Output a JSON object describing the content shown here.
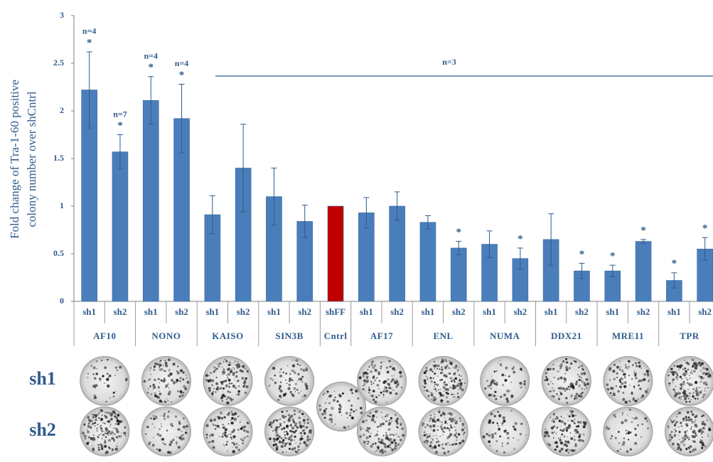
{
  "chart_data": {
    "type": "bar",
    "y_label": [
      "Fold change of Tra-1-60 positive",
      "colony number over shCntrl"
    ],
    "ylim": [
      0,
      3
    ],
    "yticks": [
      0,
      0.5,
      1,
      1.5,
      2,
      2.5,
      3
    ],
    "groups": [
      {
        "label": "AF10",
        "color": "#4a7ebb",
        "categories": [
          "sh1",
          "sh2"
        ],
        "values": [
          2.22,
          1.57
        ],
        "errors": [
          0.4,
          0.18
        ],
        "markers": [
          "*",
          "*"
        ],
        "annotations": [
          "n=4",
          "n=7"
        ]
      },
      {
        "label": "NONO",
        "color": "#4a7ebb",
        "categories": [
          "sh1",
          "sh2"
        ],
        "values": [
          2.11,
          1.92
        ],
        "errors": [
          0.25,
          0.36
        ],
        "markers": [
          "*",
          "*"
        ],
        "annotations": [
          "n=4",
          "n=4"
        ]
      },
      {
        "label": "KAISO",
        "color": "#4a7ebb",
        "categories": [
          "sh1",
          "sh2"
        ],
        "values": [
          0.91,
          1.4
        ],
        "errors": [
          0.2,
          0.46
        ],
        "markers": [
          null,
          null
        ],
        "annotations": [
          null,
          null
        ]
      },
      {
        "label": "SIN3B",
        "color": "#4a7ebb",
        "categories": [
          "sh1",
          "sh2"
        ],
        "values": [
          1.1,
          0.84
        ],
        "errors": [
          0.3,
          0.17
        ],
        "markers": [
          null,
          null
        ],
        "annotations": [
          null,
          null
        ]
      },
      {
        "label": "Cntrl",
        "color": "#c00000",
        "categories": [
          "shFF"
        ],
        "values": [
          1.0
        ],
        "errors": [
          null
        ],
        "markers": [
          null
        ],
        "annotations": [
          null
        ]
      },
      {
        "label": "AF17",
        "color": "#4a7ebb",
        "categories": [
          "sh1",
          "sh2"
        ],
        "values": [
          0.93,
          1.0
        ],
        "errors": [
          0.16,
          0.15
        ],
        "markers": [
          null,
          null
        ],
        "annotations": [
          null,
          null
        ]
      },
      {
        "label": "ENL",
        "color": "#4a7ebb",
        "categories": [
          "sh1",
          "sh2"
        ],
        "values": [
          0.83,
          0.56
        ],
        "errors": [
          0.07,
          0.07
        ],
        "markers": [
          null,
          "*"
        ],
        "annotations": [
          null,
          null
        ]
      },
      {
        "label": "NUMA",
        "color": "#4a7ebb",
        "categories": [
          "sh1",
          "sh2"
        ],
        "values": [
          0.6,
          0.45
        ],
        "errors": [
          0.14,
          0.11
        ],
        "markers": [
          null,
          "*"
        ],
        "annotations": [
          null,
          null
        ]
      },
      {
        "label": "DDX21",
        "color": "#4a7ebb",
        "categories": [
          "sh1",
          "sh2"
        ],
        "values": [
          0.65,
          0.32
        ],
        "errors": [
          0.27,
          0.08
        ],
        "markers": [
          null,
          "*"
        ],
        "annotations": [
          null,
          null
        ]
      },
      {
        "label": "MRE11",
        "color": "#4a7ebb",
        "categories": [
          "sh1",
          "sh2"
        ],
        "values": [
          0.32,
          0.63
        ],
        "errors": [
          0.06,
          0.02
        ],
        "markers": [
          "*",
          "*"
        ],
        "annotations": [
          null,
          null
        ]
      },
      {
        "label": "TPR",
        "color": "#4a7ebb",
        "categories": [
          "sh1",
          "sh2"
        ],
        "values": [
          0.22,
          0.55
        ],
        "errors": [
          0.08,
          0.12
        ],
        "markers": [
          "*",
          "*"
        ],
        "annotations": [
          null,
          null
        ]
      }
    ],
    "group_annotation": "n=3",
    "image_rows": [
      "sh1",
      "sh2"
    ]
  }
}
